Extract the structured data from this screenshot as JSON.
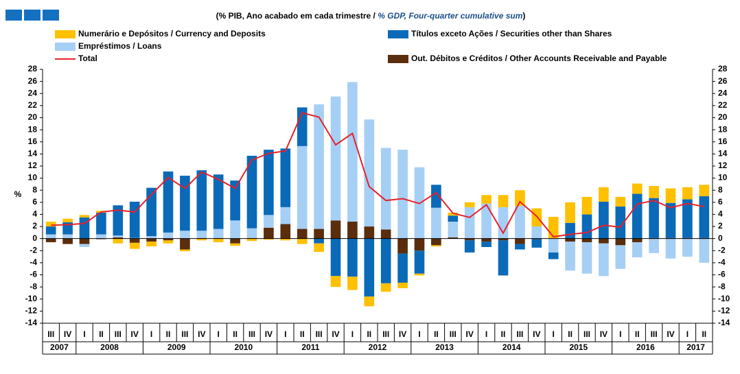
{
  "chart_data": {
    "type": "stacked-bar-line",
    "subtitle": "(% PIB, Ano acabado em cada trimestre  / ",
    "subtitle_en": "% GDP, Four-quarter cumulative sum",
    "subtitle_end": ")",
    "ylabel": "%",
    "categories": [
      "III",
      "IV",
      "I",
      "II",
      "III",
      "IV",
      "I",
      "II",
      "III",
      "IV",
      "I",
      "II",
      "III",
      "IV",
      "I",
      "II",
      "III",
      "IV",
      "I",
      "II",
      "III",
      "IV",
      "I",
      "II",
      "III",
      "IV",
      "I",
      "II",
      "III",
      "IV",
      "I",
      "II",
      "III",
      "IV",
      "I",
      "II",
      "III",
      "IV",
      "I",
      "II"
    ],
    "years": [
      "2007",
      "2008",
      "2009",
      "2010",
      "2011",
      "2012",
      "2013",
      "2014",
      "2015",
      "2016",
      "2017"
    ],
    "series": [
      {
        "name": "Out. Débitos e Créditos / Other Accounts Receivable and Payable",
        "color": "#5a2d0c",
        "values": [
          -0.6,
          -0.9,
          -0.9,
          -0.1,
          0.2,
          -0.7,
          -0.5,
          -0.3,
          -1.8,
          0.1,
          0.1,
          -0.8,
          0.1,
          1.8,
          2.4,
          1.6,
          1.6,
          3.0,
          2.8,
          2.0,
          1.5,
          -2.5,
          -2.0,
          -1.1,
          0.2,
          -0.3,
          -0.5,
          -0.3,
          -0.9,
          -0.1,
          0,
          -0.5,
          -0.6,
          -0.8,
          -1.1,
          -0.6,
          0.1,
          0.1,
          0.1,
          0.1
        ]
      },
      {
        "name": "Empréstimos / Loans",
        "color": "#a6cff5",
        "values": [
          0.7,
          0.7,
          -0.5,
          0.7,
          0.3,
          0.1,
          0.4,
          1.0,
          1.3,
          1.2,
          1.5,
          3.0,
          1.6,
          2.1,
          2.8,
          13.7,
          20.6,
          20.5,
          23.1,
          17.7,
          13.5,
          14.7,
          11.8,
          5.1,
          2.6,
          5.2,
          5.8,
          5.2,
          5.4,
          2.0,
          -2.3,
          -4.8,
          -5.2,
          -5.4,
          -3.9,
          -2.5,
          -2.4,
          -3.3,
          -3.0,
          -4.0
        ]
      },
      {
        "name": "Títulos exceto Ações / Securities other than Shares",
        "color": "#0a6ab8",
        "values": [
          1.3,
          2.0,
          3.5,
          3.6,
          5.0,
          6.0,
          8.0,
          10.1,
          9.1,
          10.0,
          9.0,
          6.6,
          12.0,
          10.8,
          9.7,
          6.4,
          -0.8,
          -6.2,
          -6.3,
          -9.6,
          -7.4,
          -4.8,
          -3.8,
          3.8,
          1.0,
          -2.0,
          -0.9,
          -5.8,
          -0.9,
          -1.4,
          -1.1,
          2.6,
          4.0,
          6.1,
          5.3,
          7.4,
          6.6,
          5.8,
          6.4,
          6.9
        ]
      },
      {
        "name": "Numerário e Depósitos / Currency and Deposits",
        "color": "#ffc000",
        "values": [
          0.8,
          0.6,
          0.4,
          0.3,
          -0.8,
          -1.0,
          -0.8,
          -0.5,
          -0.3,
          -0.3,
          -0.6,
          -0.4,
          -0.4,
          -0.2,
          -0.3,
          -0.9,
          -1.4,
          -1.8,
          -2.2,
          -1.6,
          -1.4,
          -0.9,
          -0.3,
          -0.2,
          0.5,
          0.8,
          1.4,
          2.0,
          2.6,
          3.0,
          3.6,
          3.4,
          2.9,
          2.4,
          1.6,
          1.7,
          2.0,
          2.4,
          2.0,
          1.9
        ]
      },
      {
        "name": "Total",
        "color": "#e8202a",
        "line": true,
        "values": [
          2.2,
          2.3,
          2.5,
          4.4,
          4.7,
          4.4,
          7.3,
          10.1,
          8.3,
          11.0,
          9.8,
          8.3,
          13.0,
          14.1,
          14.5,
          20.8,
          20.1,
          15.5,
          17.4,
          8.6,
          6.3,
          6.6,
          5.8,
          7.6,
          4.2,
          3.5,
          5.6,
          0.9,
          6.1,
          3.7,
          0.3,
          0.7,
          1.0,
          2.2,
          1.9,
          5.7,
          6.3,
          5.1,
          5.8,
          5.3
        ]
      }
    ],
    "ylim": [
      -14,
      28
    ],
    "yticks": [
      -14,
      -12,
      -10,
      -8,
      -6,
      -4,
      -2,
      0,
      2,
      4,
      6,
      8,
      10,
      12,
      14,
      16,
      18,
      20,
      22,
      24,
      26,
      28
    ],
    "y2lim": [
      -14,
      28
    ],
    "y2ticks": [
      -14,
      -12,
      -10,
      -8,
      -6,
      -4,
      -2,
      0,
      2,
      4,
      6,
      8,
      10,
      12,
      14,
      16,
      18,
      20,
      22,
      24,
      26,
      28
    ]
  }
}
